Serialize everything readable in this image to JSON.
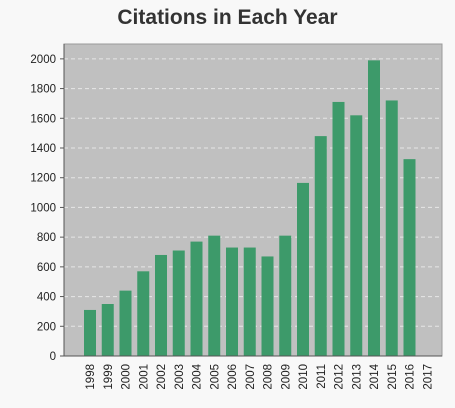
{
  "chart_data": {
    "type": "bar",
    "title": "Citations in Each Year",
    "categories": [
      "1998",
      "1999",
      "2000",
      "2001",
      "2002",
      "2003",
      "2004",
      "2005",
      "2006",
      "2007",
      "2008",
      "2009",
      "2010",
      "2011",
      "2012",
      "2013",
      "2014",
      "2015",
      "2016",
      "2017"
    ],
    "values": [
      310,
      350,
      440,
      570,
      680,
      710,
      770,
      810,
      730,
      730,
      670,
      810,
      1165,
      1480,
      1710,
      1620,
      1990,
      1720,
      1325,
      0
    ],
    "ylim": [
      0,
      2100
    ],
    "yticks": [
      0,
      200,
      400,
      600,
      800,
      1000,
      1200,
      1400,
      1600,
      1800,
      2000
    ],
    "grid": true,
    "colors": {
      "bar": "#3d9a6a",
      "plot_background": "#c0c0c0",
      "grid": "#e6e6e6",
      "page_background": "#f8f8f8"
    }
  }
}
